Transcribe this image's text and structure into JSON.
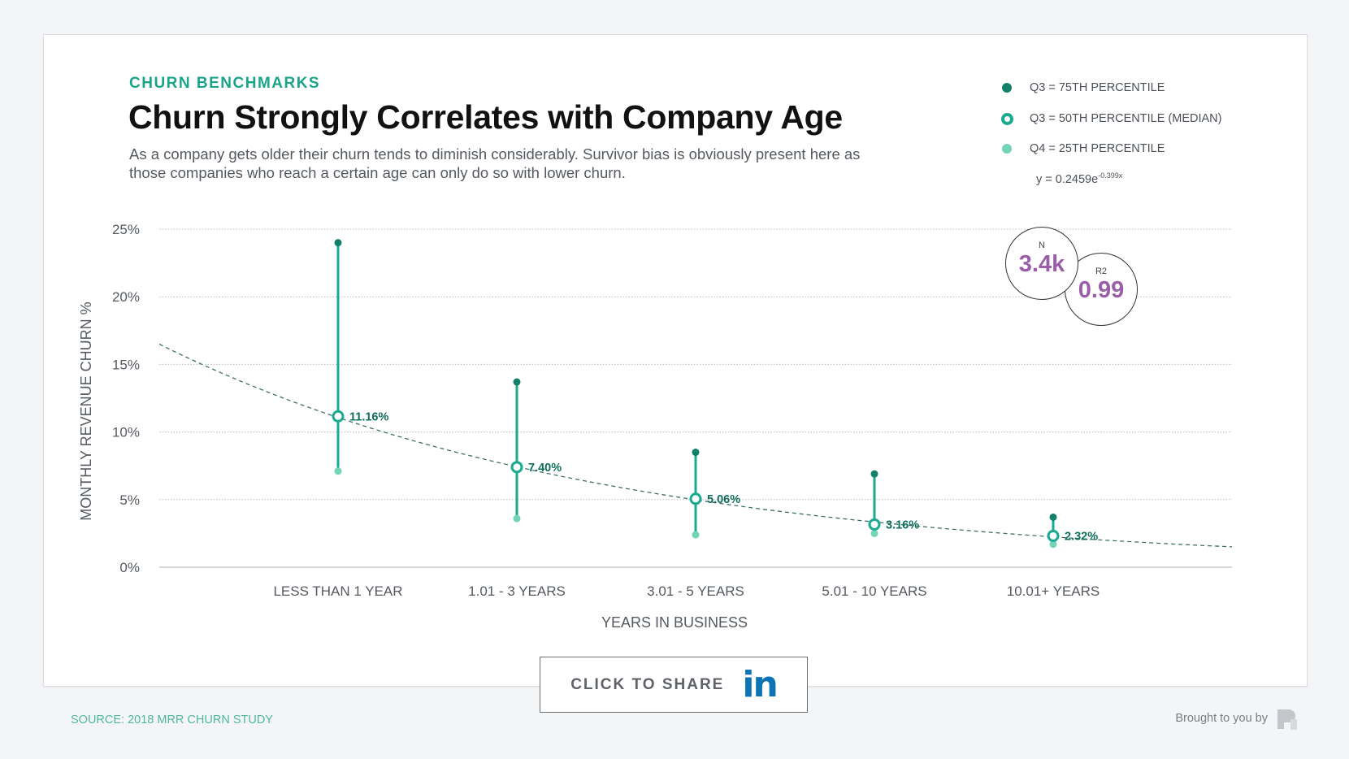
{
  "header": {
    "eyebrow": "CHURN BENCHMARKS",
    "title": "Churn Strongly Correlates with Company Age",
    "subtitle": "As a company gets older their churn tends to diminish considerably. Survivor bias is obviously present here as those companies who reach a certain age can only do so with lower churn."
  },
  "legend": {
    "items": [
      {
        "label": "Q3 = 75TH PERCENTILE",
        "color": "#14806b",
        "style": "filled"
      },
      {
        "label": "Q3 = 50TH PERCENTILE (MEDIAN)",
        "color": "#1aaa8f",
        "style": "ring"
      },
      {
        "label": "Q4 = 25TH PERCENTILE",
        "color": "#74d4b8",
        "style": "filled"
      }
    ],
    "formula_base": "y = 0.2459e",
    "formula_exp": "-0.399x"
  },
  "stats": {
    "n_label": "N",
    "n_value": "3.4k",
    "r2_label": "R2",
    "r2_value": "0.99"
  },
  "chart_data": {
    "type": "scatter",
    "title": "Churn Strongly Correlates with Company Age",
    "xlabel": "YEARS IN BUSINESS",
    "ylabel": "MONTHLY REVENUE CHURN %",
    "categories": [
      "LESS THAN 1 YEAR",
      "1.01 - 3 YEARS",
      "3.01 - 5 YEARS",
      "5.01 - 10 YEARS",
      "10.01+ YEARS"
    ],
    "y_ticks": [
      "0%",
      "5%",
      "10%",
      "15%",
      "20%",
      "25%"
    ],
    "ylim": [
      0,
      25
    ],
    "grid": true,
    "legend_placement": "top-right",
    "series": [
      {
        "name": "Q3 = 75TH PERCENTILE",
        "values": [
          24.0,
          13.7,
          8.5,
          6.9,
          3.7
        ]
      },
      {
        "name": "Q3 = 50TH PERCENTILE (MEDIAN)",
        "values": [
          11.16,
          7.4,
          5.06,
          3.16,
          2.32
        ],
        "labels": [
          "11.16%",
          "7.40%",
          "5.06%",
          "3.16%",
          "2.32%"
        ]
      },
      {
        "name": "Q4 = 25TH PERCENTILE",
        "values": [
          7.1,
          3.6,
          2.4,
          2.5,
          1.7
        ]
      }
    ],
    "trendline": {
      "type": "exponential",
      "a": 0.2459,
      "b": -0.399,
      "x_range": [
        1,
        7
      ],
      "category_x": [
        2,
        3,
        4,
        5,
        6
      ]
    },
    "colors": {
      "line": "#1aaa8f",
      "q75": "#14806b",
      "q25": "#74d4b8",
      "label": "#0f6e5a",
      "trend": "#3f6f6a"
    }
  },
  "share": {
    "label": "CLICK TO SHARE",
    "icon": "linkedin-icon",
    "icon_text": "in"
  },
  "footer": {
    "source": "SOURCE: 2018 MRR CHURN STUDY",
    "brought": "Brought to you by",
    "logo_icon": "profitwell-logo-icon"
  }
}
